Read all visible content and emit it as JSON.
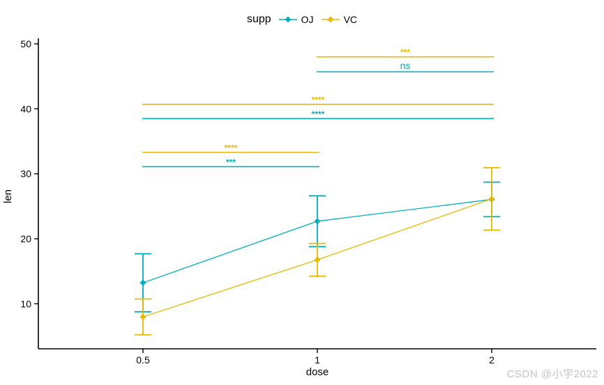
{
  "legend": {
    "title": "supp",
    "series": [
      {
        "label": "OJ",
        "color": "#00AFBB"
      },
      {
        "label": "VC",
        "color": "#E7B800"
      }
    ]
  },
  "axes": {
    "x": {
      "label": "dose",
      "ticks": [
        "0.5",
        "1",
        "2"
      ]
    },
    "y": {
      "label": "len",
      "ticks": [
        10,
        20,
        30,
        40,
        50
      ]
    }
  },
  "chart_data": {
    "type": "line",
    "title": "",
    "xlabel": "dose",
    "ylabel": "len",
    "categories": [
      "0.5",
      "1",
      "2"
    ],
    "ylim": [
      3,
      51
    ],
    "grid": false,
    "legend_position": "top",
    "legend_title": "supp",
    "series": [
      {
        "name": "OJ",
        "color": "#00AFBB",
        "means": [
          13.23,
          22.7,
          26.06
        ],
        "error_low": [
          8.77,
          18.79,
          23.4
        ],
        "error_high": [
          17.69,
          26.61,
          28.72
        ]
      },
      {
        "name": "VC",
        "color": "#E7B800",
        "means": [
          7.98,
          16.77,
          26.14
        ],
        "error_low": [
          5.23,
          14.25,
          21.34
        ],
        "error_high": [
          10.73,
          19.29,
          30.94
        ]
      }
    ],
    "annotations": [
      {
        "series": "VC",
        "x1": "1",
        "x2": "2",
        "y": 48.0,
        "label": "***"
      },
      {
        "series": "OJ",
        "x1": "1",
        "x2": "2",
        "y": 45.7,
        "label": "ns"
      },
      {
        "series": "VC",
        "x1": "0.5",
        "x2": "2",
        "y": 40.7,
        "label": "****"
      },
      {
        "series": "OJ",
        "x1": "0.5",
        "x2": "2",
        "y": 38.5,
        "label": "****"
      },
      {
        "series": "VC",
        "x1": "0.5",
        "x2": "1",
        "y": 33.3,
        "label": "****"
      },
      {
        "series": "OJ",
        "x1": "0.5",
        "x2": "1",
        "y": 31.1,
        "label": "***"
      }
    ]
  },
  "watermark": "CSDN @小宇2022"
}
